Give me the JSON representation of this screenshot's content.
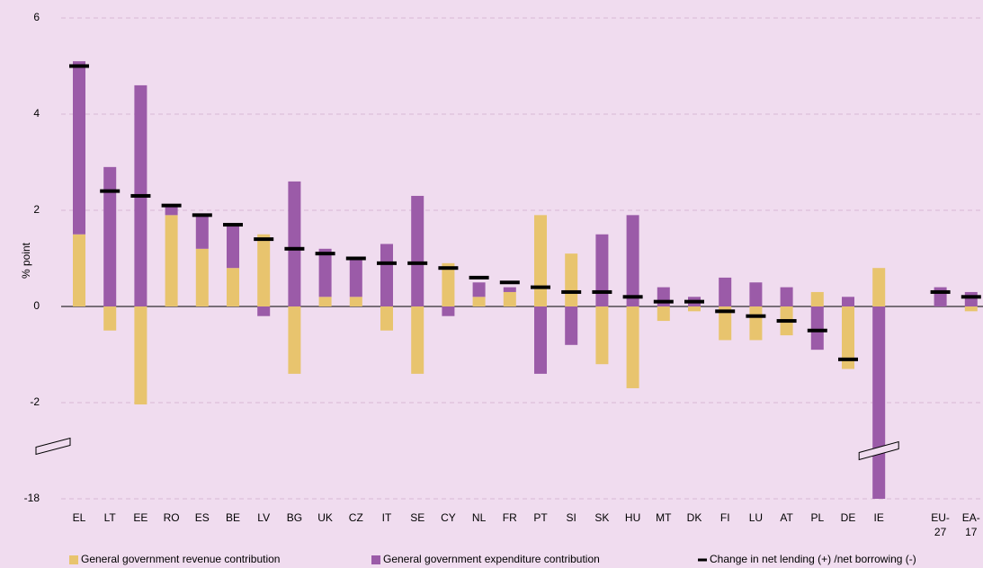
{
  "chart_data": {
    "type": "stacked_bar",
    "y_label": "% point",
    "categories": [
      "EL",
      "LT",
      "EE",
      "RO",
      "ES",
      "BE",
      "LV",
      "BG",
      "UK",
      "CZ",
      "IT",
      "SE",
      "CY",
      "NL",
      "FR",
      "PT",
      "SI",
      "SK",
      "HU",
      "MT",
      "DK",
      "FI",
      "LU",
      "AT",
      "PL",
      "DE",
      "IE",
      null,
      "EU-27",
      "EA-17"
    ],
    "series": [
      {
        "name": "General government revenue contribution",
        "color": "#e8c46e",
        "style": "bar",
        "values": [
          1.5,
          -0.5,
          -2.3,
          1.9,
          1.2,
          0.8,
          1.5,
          -1.4,
          0.2,
          0.2,
          -0.5,
          -1.4,
          0.9,
          0.2,
          0.3,
          1.9,
          1.1,
          -1.2,
          -1.7,
          -0.3,
          -0.1,
          -0.7,
          -0.7,
          -0.6,
          0.3,
          -1.3,
          0.8,
          null,
          0,
          -0.1
        ]
      },
      {
        "name": "General government expenditure contribution",
        "color": "#9b5ba8",
        "style": "bar",
        "values": [
          3.6,
          2.9,
          4.6,
          0.2,
          0.7,
          0.9,
          -0.2,
          2.6,
          1.0,
          0.8,
          1.3,
          2.3,
          -0.2,
          0.3,
          0.1,
          -1.4,
          -0.8,
          1.5,
          1.9,
          0.4,
          0.2,
          0.6,
          0.5,
          0.4,
          -0.9,
          0.2,
          -18,
          null,
          0.4,
          0.3
        ]
      },
      {
        "name": "Change in net lending (+) /net borrowing (-)",
        "color": "#000000",
        "style": "dash",
        "values": [
          5.0,
          2.4,
          2.3,
          2.1,
          1.9,
          1.7,
          1.4,
          1.2,
          1.1,
          1.0,
          0.9,
          0.9,
          0.8,
          0.6,
          0.5,
          0.4,
          0.3,
          0.3,
          0.2,
          0.1,
          0.1,
          -0.1,
          -0.2,
          -0.3,
          -0.5,
          -1.1,
          null,
          null,
          0.3,
          0.2
        ]
      }
    ],
    "ylim": [
      -18,
      6
    ],
    "yticks": [
      6,
      4,
      2,
      0,
      -2,
      -18
    ],
    "y_axis_break": true,
    "grid": true,
    "background": "#f0dcef",
    "legend": "bottom"
  }
}
